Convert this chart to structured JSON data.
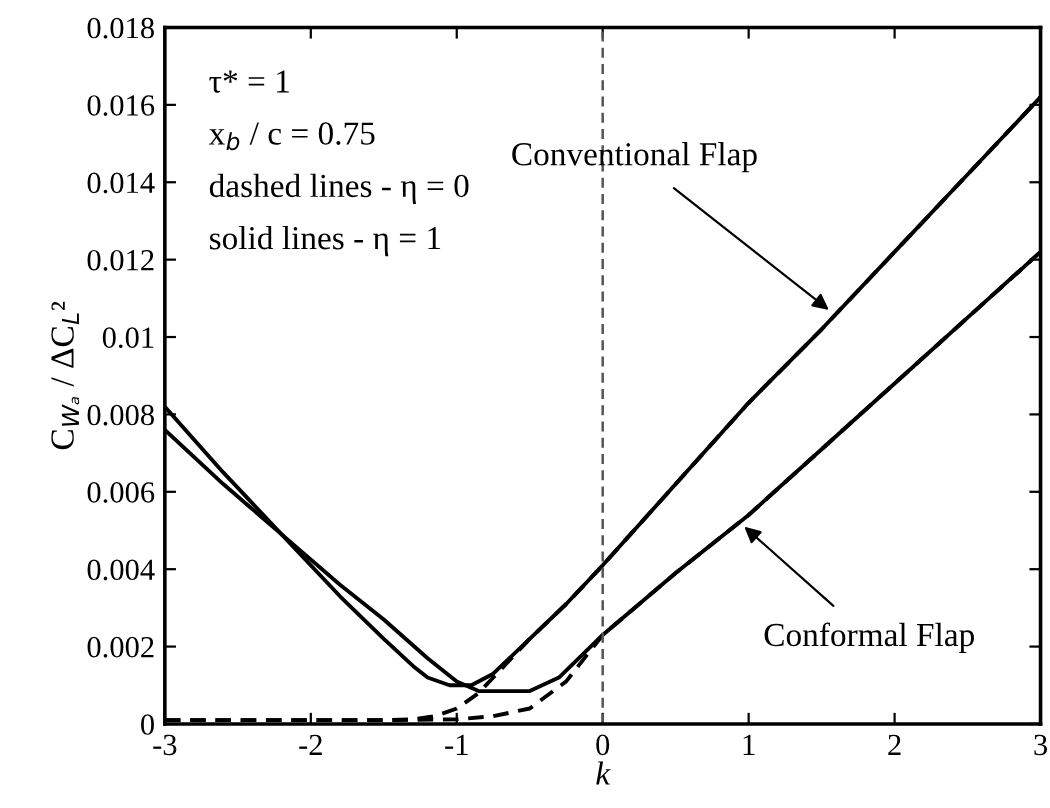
{
  "chart_data": {
    "type": "line",
    "xlabel": "k",
    "ylabel": "C$_{Wₐ}$ / ΔC$_{L}$²",
    "xlim": [
      -3,
      3
    ],
    "ylim": [
      0,
      0.018
    ],
    "xticks": [
      -3,
      -2,
      -1,
      0,
      1,
      2,
      3
    ],
    "yticks": [
      0,
      0.002,
      0.004,
      0.006,
      0.008,
      0.01,
      0.012,
      0.014,
      0.016,
      0.018
    ],
    "grid": false,
    "legend": false,
    "series": [
      {
        "color": "#000000",
        "line_style": "solid",
        "x": [
          -3,
          -2.6,
          -2.2,
          -1.8,
          -1.5,
          -1.3,
          -1.2,
          -1.05,
          -0.9,
          -0.75,
          -0.5,
          -0.25,
          0,
          0.5,
          1,
          1.5,
          2,
          2.5,
          3
        ],
        "values": [
          0.0082,
          0.0065,
          0.0049,
          0.0033,
          0.0022,
          0.0015,
          0.0012,
          0.001,
          0.001,
          0.0013,
          0.0022,
          0.0031,
          0.0041,
          0.0062,
          0.0083,
          0.0102,
          0.0122,
          0.0142,
          0.0162
        ]
      },
      {
        "color": "#000000",
        "line_style": "dashed",
        "x": [
          -3,
          -2,
          -1.5,
          -1.3,
          -1.15,
          -1,
          -0.85,
          -0.75,
          -0.5,
          -0.25,
          0,
          0.5,
          1,
          1.5,
          2,
          2.5,
          3
        ],
        "values": [
          0.0001,
          0.0001,
          0.0001,
          0.00012,
          0.0002,
          0.0004,
          0.0008,
          0.0012,
          0.0022,
          0.0031,
          0.0041,
          0.0062,
          0.0083,
          0.0102,
          0.0122,
          0.0142,
          0.0162
        ]
      },
      {
        "color": "#000000",
        "line_style": "solid",
        "x": [
          -3,
          -2.6,
          -2.2,
          -1.8,
          -1.5,
          -1.2,
          -1.0,
          -0.85,
          -0.5,
          -0.3,
          0,
          0.5,
          1,
          1.5,
          2,
          2.5,
          3
        ],
        "values": [
          0.0076,
          0.0062,
          0.0049,
          0.0036,
          0.0027,
          0.0017,
          0.0011,
          0.00085,
          0.00085,
          0.0012,
          0.0023,
          0.0039,
          0.0054,
          0.0071,
          0.0088,
          0.0105,
          0.0122
        ]
      },
      {
        "color": "#000000",
        "line_style": "dashed",
        "x": [
          -3,
          -2,
          -1.5,
          -1.0,
          -0.75,
          -0.5,
          -0.25,
          0,
          0.5,
          1,
          1.5,
          2,
          2.5,
          3
        ],
        "values": [
          0.0001,
          0.0001,
          0.0001,
          0.00012,
          0.0002,
          0.0004,
          0.0011,
          0.0023,
          0.0039,
          0.0054,
          0.0071,
          0.0088,
          0.0105,
          0.0122
        ]
      }
    ],
    "ref_lines": [
      {
        "axis": "x",
        "value": 0,
        "color": "#555555",
        "line_style": "dashed"
      }
    ],
    "annotations": [
      "τ* = 1",
      "x$_{b}$ / c = 0.75",
      "dashed lines - η = 0",
      "solid lines - η = 1",
      {
        "text": "Conventional Flap",
        "x": 1.55,
        "y": 0.0107
      },
      {
        "text": "Conformal Flap",
        "x": 0.97,
        "y": 0.0051
      }
    ]
  }
}
